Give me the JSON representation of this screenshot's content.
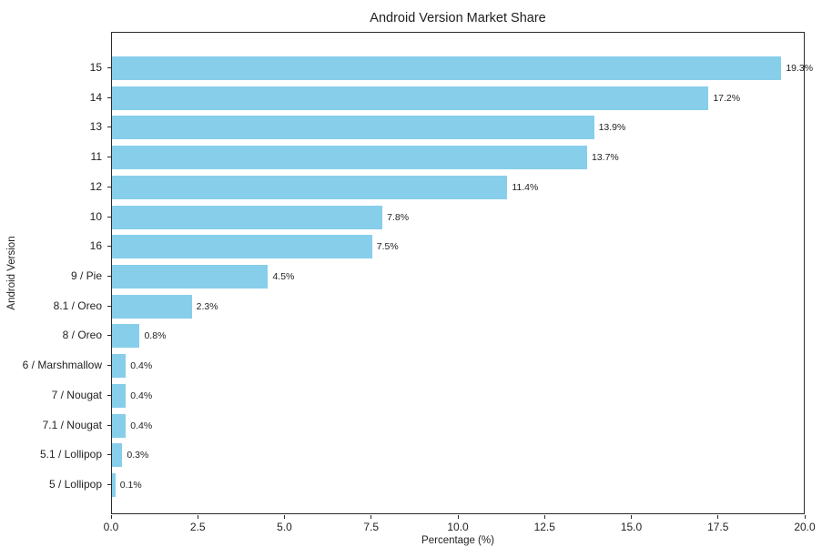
{
  "chart_data": {
    "type": "bar",
    "orientation": "horizontal",
    "title": "Android Version Market Share",
    "xlabel": "Percentage (%)",
    "ylabel": "Android Version",
    "categories": [
      "15",
      "14",
      "13",
      "11",
      "12",
      "10",
      "16",
      "9 / Pie",
      "8.1 / Oreo",
      "8 / Oreo",
      "6 / Marshmallow",
      "7 / Nougat",
      "7.1 / Nougat",
      "5.1 / Lollipop",
      "5 / Lollipop"
    ],
    "values": [
      19.3,
      17.2,
      13.9,
      13.7,
      11.4,
      7.8,
      7.5,
      4.5,
      2.3,
      0.8,
      0.4,
      0.4,
      0.4,
      0.3,
      0.1
    ],
    "value_labels": [
      "19.3%",
      "17.2%",
      "13.9%",
      "13.7%",
      "11.4%",
      "7.8%",
      "7.5%",
      "4.5%",
      "2.3%",
      "0.8%",
      "0.4%",
      "0.4%",
      "0.4%",
      "0.3%",
      "0.1%"
    ],
    "xlim": [
      0,
      20
    ],
    "x_tick_values": [
      0,
      2.5,
      5,
      7.5,
      10,
      12.5,
      15,
      17.5,
      20
    ],
    "x_tick_labels": [
      "0.0",
      "2.5",
      "5.0",
      "7.5",
      "10.0",
      "12.5",
      "15.0",
      "17.5",
      "20.0"
    ],
    "grid": false,
    "legend": "none",
    "bar_color": "#87CEEB",
    "axis_color": "#2b2b2b",
    "text_color": "#1f1f1f"
  }
}
